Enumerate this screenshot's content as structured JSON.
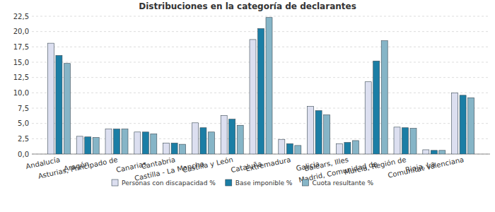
{
  "chart_data": {
    "type": "bar",
    "title": "Distribuciones en la categoría de declarantes",
    "categories": [
      "Andalucía",
      "Aragón",
      "Asturias, Principado de",
      "Canarias",
      "Cantabria",
      "Castilla - La Mancha",
      "Castilla y León",
      "Cataluña",
      "Extremadura",
      "Galicia",
      "Balears, Illes",
      "Madrid, Comunidad de",
      "Murcia, Región de",
      "Rioja, La",
      "Comunitat Valenciana"
    ],
    "series": [
      {
        "name": "Personas con discapacidad %",
        "color": "#dcdff0",
        "values": [
          18.1,
          2.9,
          4.1,
          3.6,
          1.8,
          5.1,
          6.3,
          18.7,
          2.4,
          7.8,
          1.7,
          11.8,
          4.4,
          0.7,
          10.0
        ]
      },
      {
        "name": "Base imponible %",
        "color": "#1b7ea5",
        "values": [
          16.1,
          2.8,
          4.1,
          3.6,
          1.8,
          4.3,
          5.7,
          20.5,
          1.7,
          7.1,
          1.9,
          15.2,
          4.3,
          0.6,
          9.6
        ]
      },
      {
        "name": "Cuota resultante %",
        "color": "#86b5c7",
        "values": [
          14.8,
          2.7,
          4.1,
          3.3,
          1.6,
          3.6,
          4.7,
          22.3,
          1.4,
          6.4,
          2.2,
          18.5,
          4.2,
          0.6,
          9.2
        ]
      }
    ],
    "ylim": [
      0,
      22.5
    ],
    "yticks": [
      {
        "value": 0,
        "label": "0,0"
      },
      {
        "value": 2.5,
        "label": "2,5"
      },
      {
        "value": 5,
        "label": "5,0"
      },
      {
        "value": 7.5,
        "label": "7,5"
      },
      {
        "value": 10,
        "label": "10,0"
      },
      {
        "value": 12.5,
        "label": "12,5"
      },
      {
        "value": 15,
        "label": "15,0"
      },
      {
        "value": 17.5,
        "label": "17,5"
      },
      {
        "value": 20,
        "label": "20,0"
      },
      {
        "value": 22.5,
        "label": "22,5"
      }
    ],
    "grid": true,
    "legend": "bottom"
  }
}
